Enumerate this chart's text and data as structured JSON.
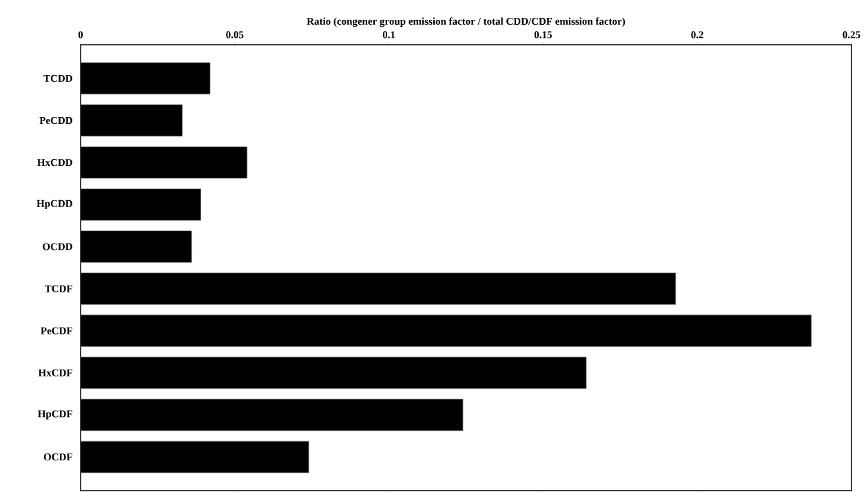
{
  "chart_data": {
    "type": "bar",
    "orientation": "horizontal",
    "xlabel": "Ratio (congener group emission factor / total CDD/CDF emission factor)",
    "categories": [
      "TCDD",
      "PeCDD",
      "HxCDD",
      "HpCDD",
      "OCDD",
      "TCDF",
      "PeCDF",
      "HxCDF",
      "HpCDF",
      "OCDF"
    ],
    "values": [
      0.042,
      0.033,
      0.054,
      0.039,
      0.036,
      0.193,
      0.237,
      0.164,
      0.124,
      0.074
    ],
    "color": "#000000",
    "xlim": [
      0,
      0.25
    ],
    "xticks": [
      0,
      0.05,
      0.1,
      0.15,
      0.2,
      0.25
    ]
  }
}
